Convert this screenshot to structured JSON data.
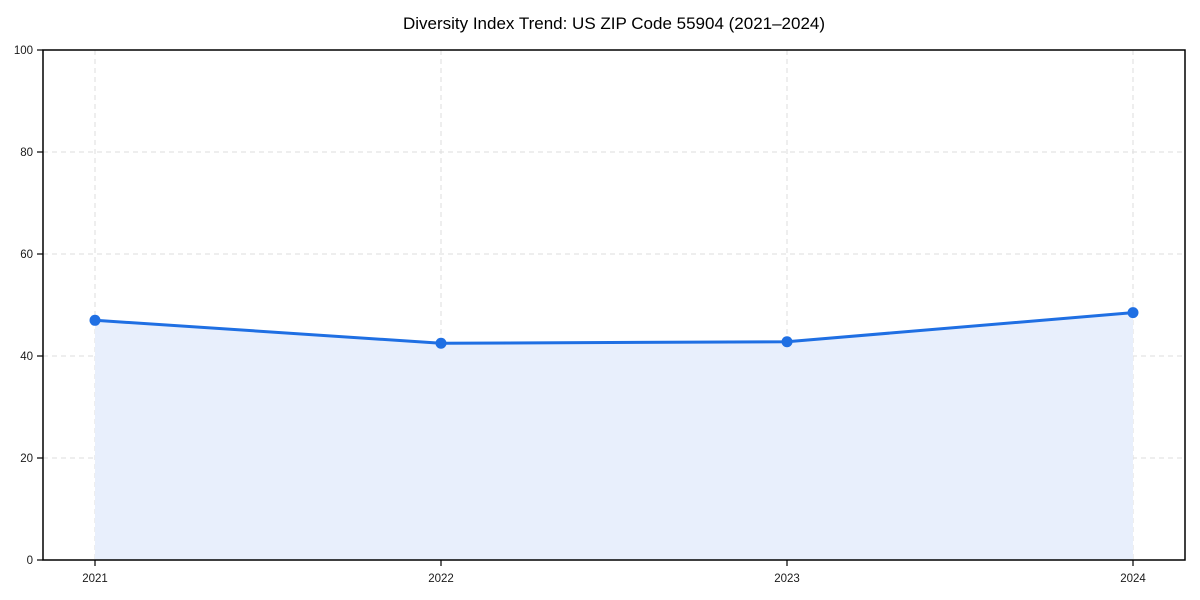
{
  "chart_data": {
    "type": "area",
    "title": "Diversity Index Trend: US ZIP Code 55904 (2021–2024)",
    "categories": [
      "2021",
      "2022",
      "2023",
      "2024"
    ],
    "series": [
      {
        "name": "Diversity Index",
        "values": [
          47.0,
          42.5,
          42.8,
          48.5
        ]
      }
    ],
    "xlabel": "",
    "ylabel": "",
    "ylim": [
      0,
      100
    ],
    "yticks": [
      0,
      20,
      40,
      60,
      80,
      100
    ],
    "grid": true,
    "grid_style": "dashed",
    "legend_position": "none",
    "colors": {
      "line": "#1f6fe3",
      "marker": "#1f6fe3",
      "fill": "#e8effc",
      "grid": "#dedede",
      "axis": "#000000",
      "tick_label": "#1a1a1a",
      "background": "#ffffff"
    }
  }
}
